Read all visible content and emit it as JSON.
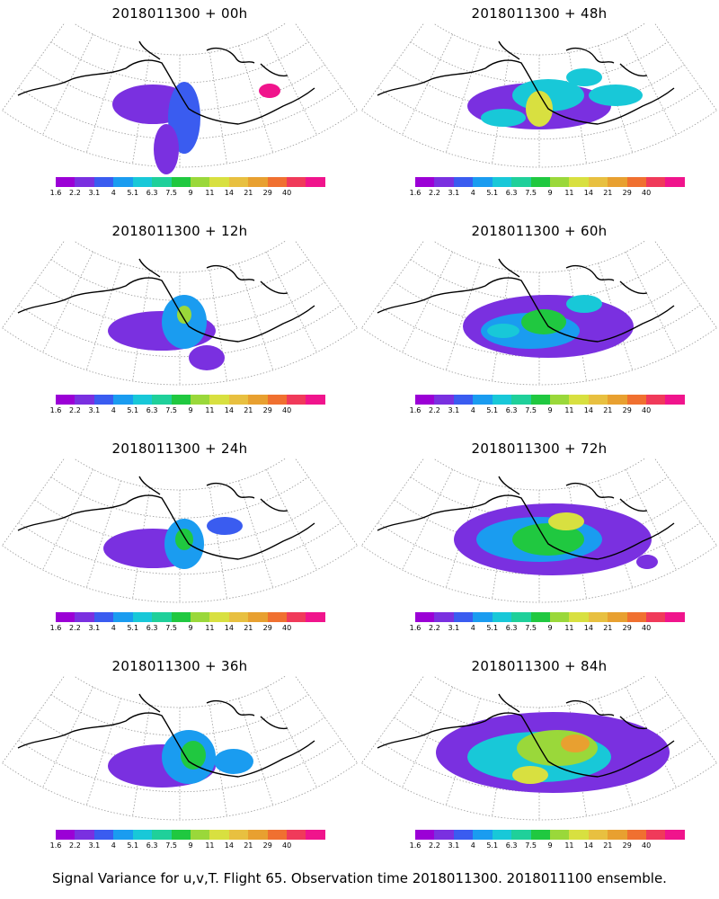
{
  "panels": [
    {
      "title": "2018011300 + 00h"
    },
    {
      "title": "2018011300 + 48h"
    },
    {
      "title": "2018011300 + 12h"
    },
    {
      "title": "2018011300 + 60h"
    },
    {
      "title": "2018011300 + 24h"
    },
    {
      "title": "2018011300 + 72h"
    },
    {
      "title": "2018011300 + 36h"
    },
    {
      "title": "2018011300 + 84h"
    }
  ],
  "colorbar": {
    "labels": [
      "1.6",
      "2.2",
      "3.1",
      "4",
      "5.1",
      "6.3",
      "7.5",
      "9",
      "11",
      "14",
      "21",
      "29",
      "40"
    ],
    "colors": [
      "#9b00d6",
      "#7a30e0",
      "#3a5cf0",
      "#1a9cf0",
      "#18c8d8",
      "#1fd09a",
      "#20c840",
      "#9ad83a",
      "#d8e040",
      "#e8c040",
      "#e8a030",
      "#f07030",
      "#f03a5a",
      "#f0148c"
    ]
  },
  "caption": "Signal Variance for u,v,T. Flight 65. Observation time 2018011300. 2018011100 ensemble."
}
